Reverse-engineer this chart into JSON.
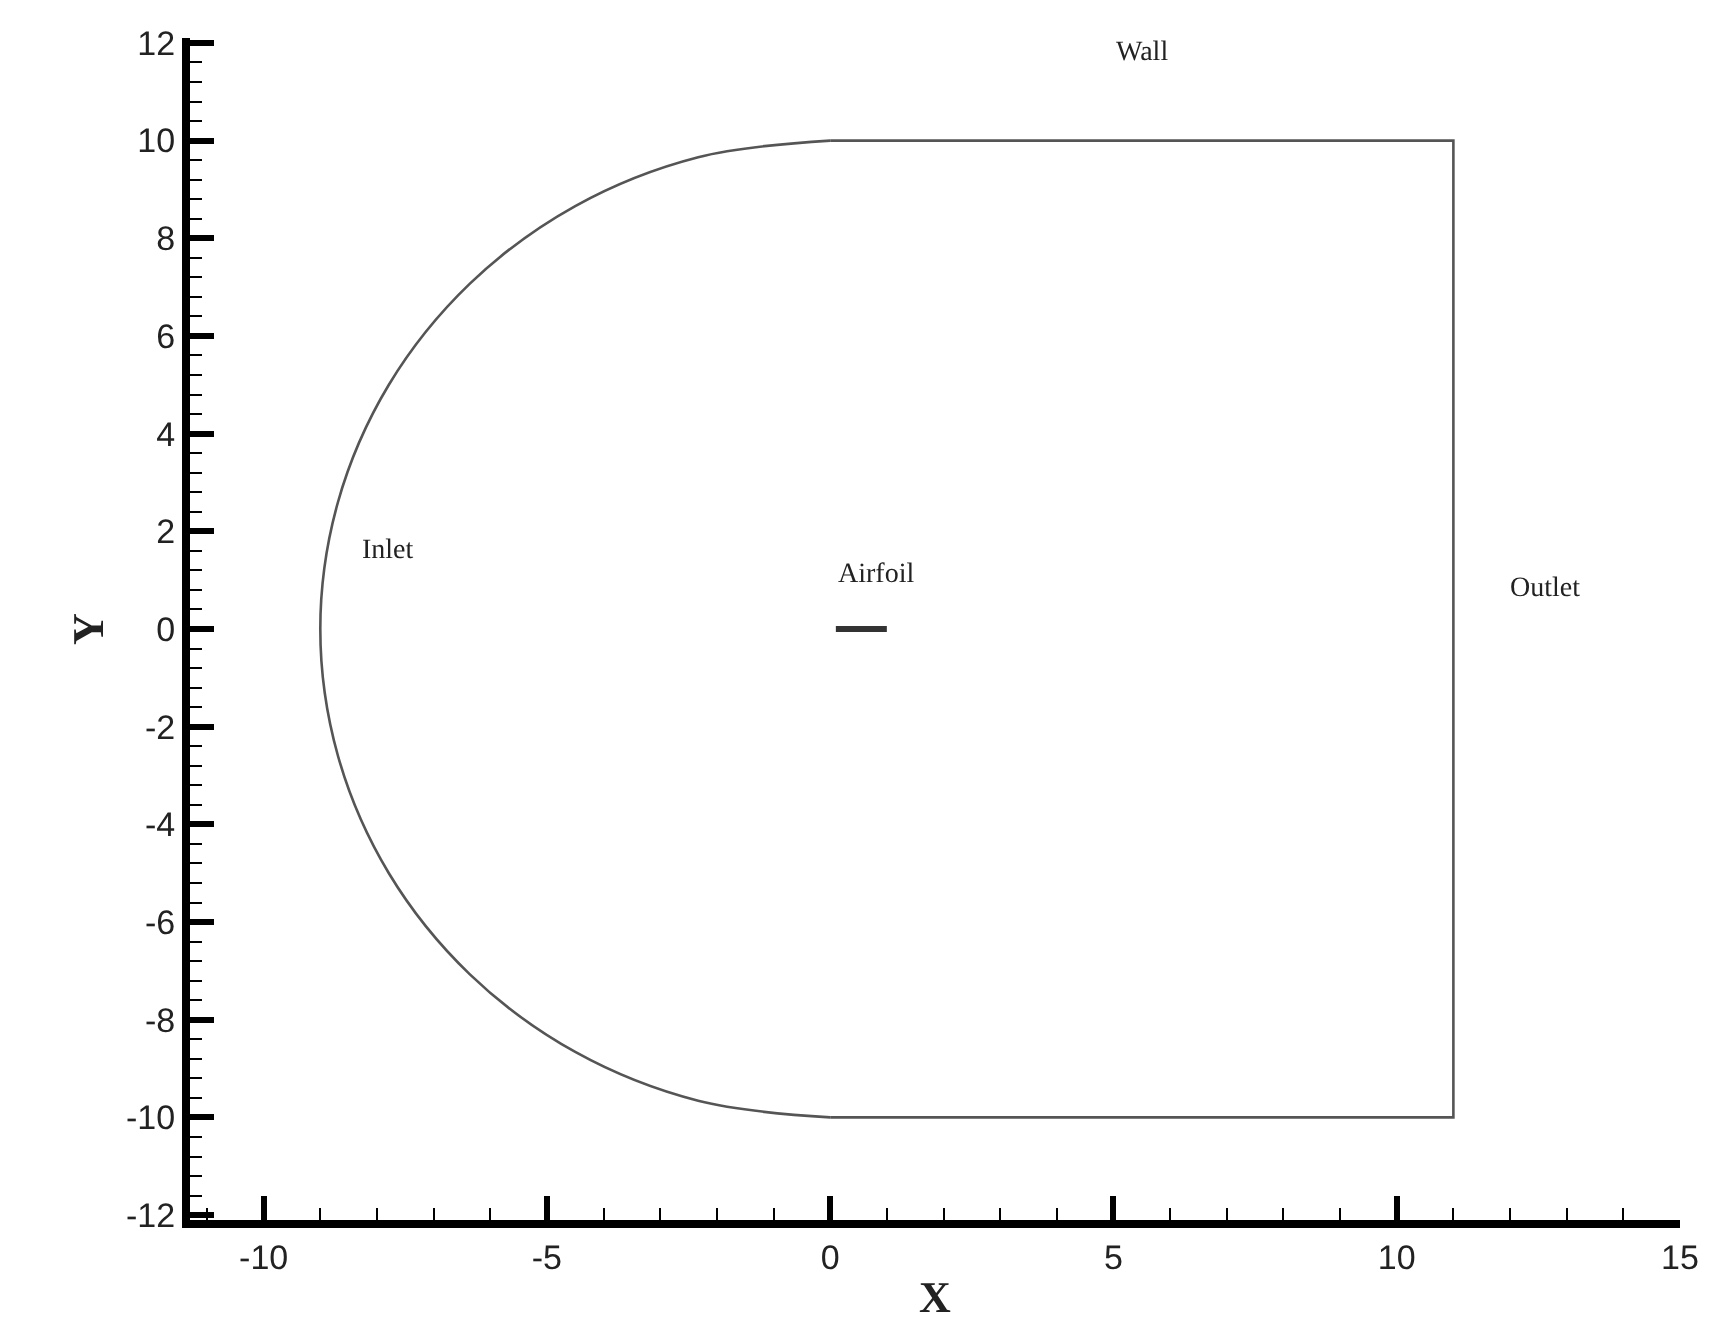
{
  "chart_data": {
    "type": "line",
    "xlabel": "X",
    "ylabel": "Y",
    "xlim": [
      -11.3,
      15
    ],
    "ylim": [
      -12.1,
      12.1
    ],
    "xticks": [
      -10,
      -5,
      0,
      5,
      10,
      15
    ],
    "yticks": [
      -12,
      -10,
      -8,
      -6,
      -4,
      -2,
      0,
      2,
      4,
      6,
      8,
      10,
      12
    ],
    "marker": "none",
    "line_style": "solid",
    "series": [
      {
        "color": "#555555",
        "x": [
          0,
          -2.33,
          -4.5,
          -6.36,
          -7.79,
          -8.69,
          -9,
          -8.69,
          -7.79,
          -6.36,
          -4.5,
          -2.33,
          0
        ],
        "values": [
          10,
          9.66,
          8.66,
          7.07,
          5.0,
          2.59,
          0,
          -2.59,
          -5.0,
          -7.07,
          -8.66,
          -9.66,
          -10
        ]
      },
      {
        "color": "#555555",
        "x": [
          0,
          11,
          11,
          0
        ],
        "values": [
          -10,
          -10,
          10,
          10
        ]
      },
      {
        "color": "#333333",
        "x": [
          0.1,
          1.0
        ],
        "values": [
          0,
          0
        ]
      }
    ],
    "annotations": [
      "Wall",
      "Inlet",
      "Airfoil",
      "Outlet"
    ]
  }
}
